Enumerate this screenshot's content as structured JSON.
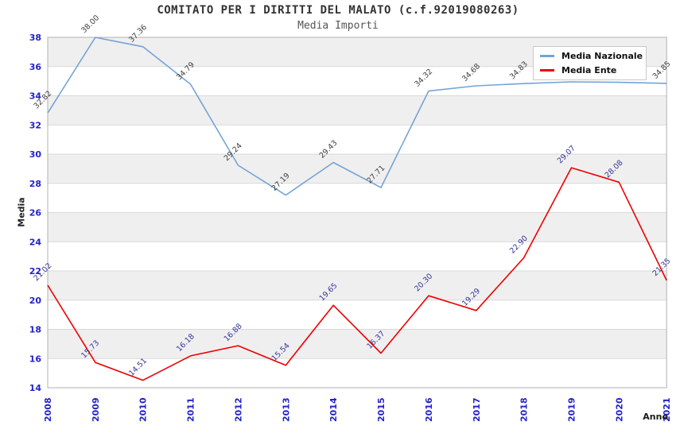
{
  "header": {
    "title": "COMITATO PER I DIRITTI DEL MALATO (c.f.92019080263)",
    "subtitle": "Media Importi"
  },
  "chart_data": {
    "type": "line",
    "title": "COMITATO PER I DIRITTI DEL MALATO (c.f.92019080263)",
    "subtitle": "Media Importi",
    "categories": [
      "2008",
      "2009",
      "2010",
      "2011",
      "2012",
      "2013",
      "2014",
      "2015",
      "2016",
      "2017",
      "2018",
      "2019",
      "2020",
      "2021"
    ],
    "series": [
      {
        "name": "Media Nazionale",
        "color": "#74a3d6",
        "label_color": "#3d3d3d",
        "values": [
          32.82,
          38.0,
          37.36,
          34.79,
          29.24,
          27.19,
          29.43,
          27.71,
          34.32,
          34.68,
          34.83,
          34.95,
          34.92,
          34.85
        ],
        "hidden_label_indices": [
          11,
          12
        ]
      },
      {
        "name": "Media Ente",
        "color": "#ee0000",
        "label_color": "#333399",
        "values": [
          21.02,
          15.73,
          14.51,
          16.18,
          16.88,
          15.54,
          19.65,
          16.37,
          20.3,
          19.29,
          22.9,
          29.07,
          28.08,
          21.35
        ],
        "hidden_label_indices": []
      }
    ],
    "xlabel": "Anno",
    "ylabel": "Media",
    "ylim": [
      14,
      38
    ],
    "ytick_step": 2,
    "grid": true,
    "legend_position": "top-right",
    "colors": {
      "tick_label": "#2222cc",
      "band_fill": "#efefef",
      "gridline": "#d9d9d9",
      "plot_border": "#b0b0b0"
    }
  }
}
